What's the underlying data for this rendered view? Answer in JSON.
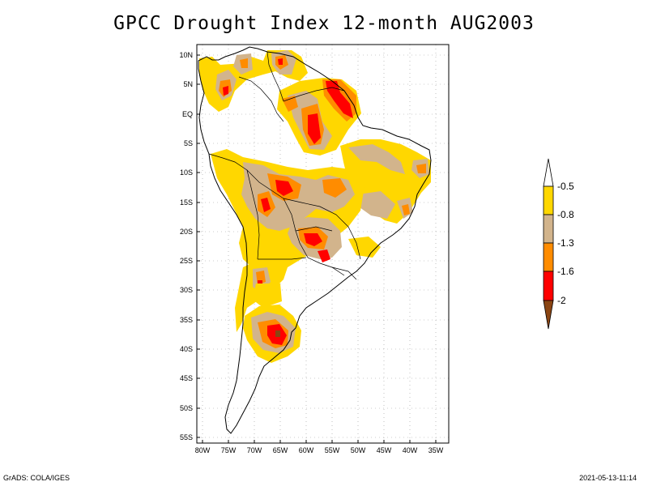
{
  "title": "GPCC Drought Index 12-month AUG2003",
  "lat_ticks": [
    "10N",
    "5N",
    "EQ",
    "5S",
    "10S",
    "15S",
    "20S",
    "25S",
    "30S",
    "35S",
    "40S",
    "45S",
    "50S",
    "55S"
  ],
  "lon_ticks": [
    "80W",
    "75W",
    "70W",
    "65W",
    "60W",
    "55W",
    "50W",
    "45W",
    "40W",
    "35W"
  ],
  "legend": {
    "labels": [
      "-0.5",
      "-0.8",
      "-1.3",
      "-1.6",
      "-2"
    ],
    "colors": {
      "above": "#ffffff",
      "c1": "#ffd700",
      "c2": "#d2b48c",
      "c3": "#ff8c00",
      "c4": "#ff0000",
      "below": "#8b4513"
    }
  },
  "footer": {
    "left": "GrADS: COLA/IGES",
    "right": "2021-05-13-11:14"
  }
}
